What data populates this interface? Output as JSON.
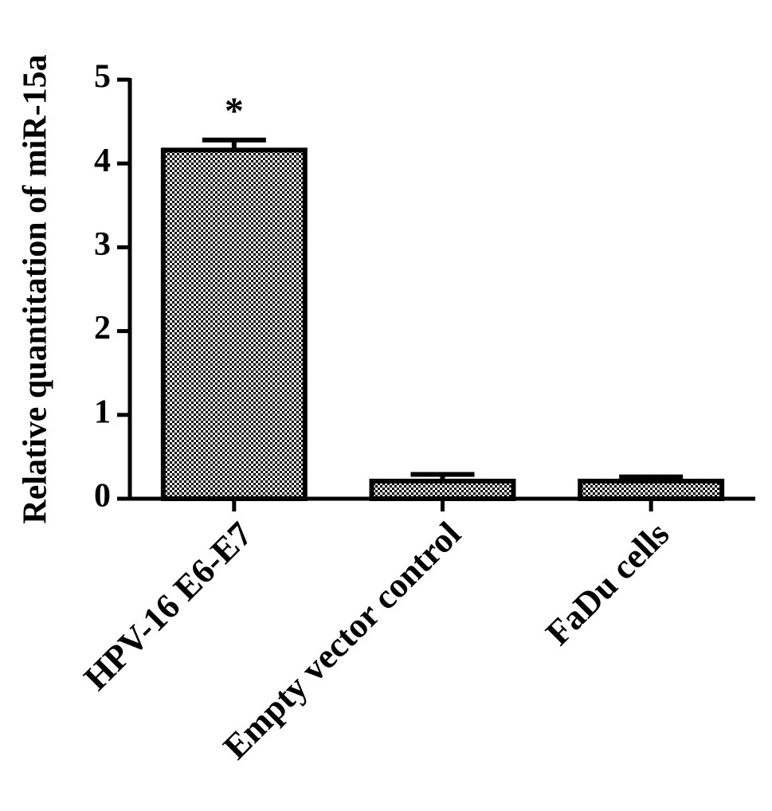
{
  "chart_data": {
    "type": "bar",
    "ylabel": "Relative quantitation of miR-15a",
    "categories": [
      "HPV-16 E6-E7",
      "Empty vector control",
      "FaDu cells"
    ],
    "values": [
      4.16,
      0.21,
      0.21
    ],
    "errors": [
      0.12,
      0.08,
      0.05
    ],
    "color": "#000000",
    "ylim": [
      0,
      5
    ],
    "yticks": [
      0,
      1,
      2,
      3,
      4,
      5
    ],
    "annotations": [
      "*"
    ]
  }
}
